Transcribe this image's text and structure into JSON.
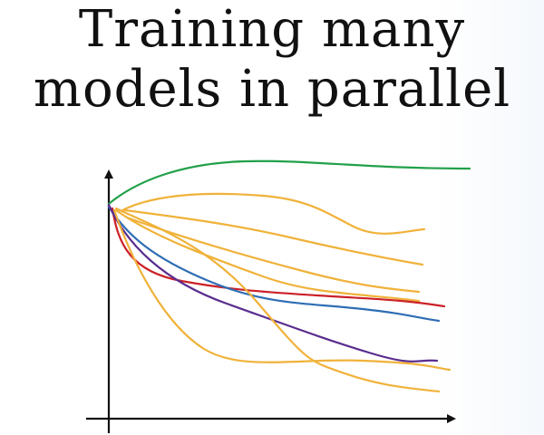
{
  "title": {
    "line1": "Training many",
    "line2": "models in parallel"
  },
  "colors": {
    "green": "#22a04a",
    "orange": "#f0b23a",
    "red": "#cc2027",
    "blue": "#2e6db4",
    "purple": "#5a2d8e",
    "axis": "#111111"
  },
  "curves": [
    {
      "id": "green",
      "color": "green"
    },
    {
      "id": "orange-1",
      "color": "orange"
    },
    {
      "id": "orange-2",
      "color": "orange"
    },
    {
      "id": "orange-3",
      "color": "orange"
    },
    {
      "id": "orange-4",
      "color": "orange"
    },
    {
      "id": "red",
      "color": "red"
    },
    {
      "id": "blue",
      "color": "blue"
    },
    {
      "id": "purple",
      "color": "purple"
    },
    {
      "id": "orange-5",
      "color": "orange"
    },
    {
      "id": "orange-6",
      "color": "orange"
    }
  ]
}
